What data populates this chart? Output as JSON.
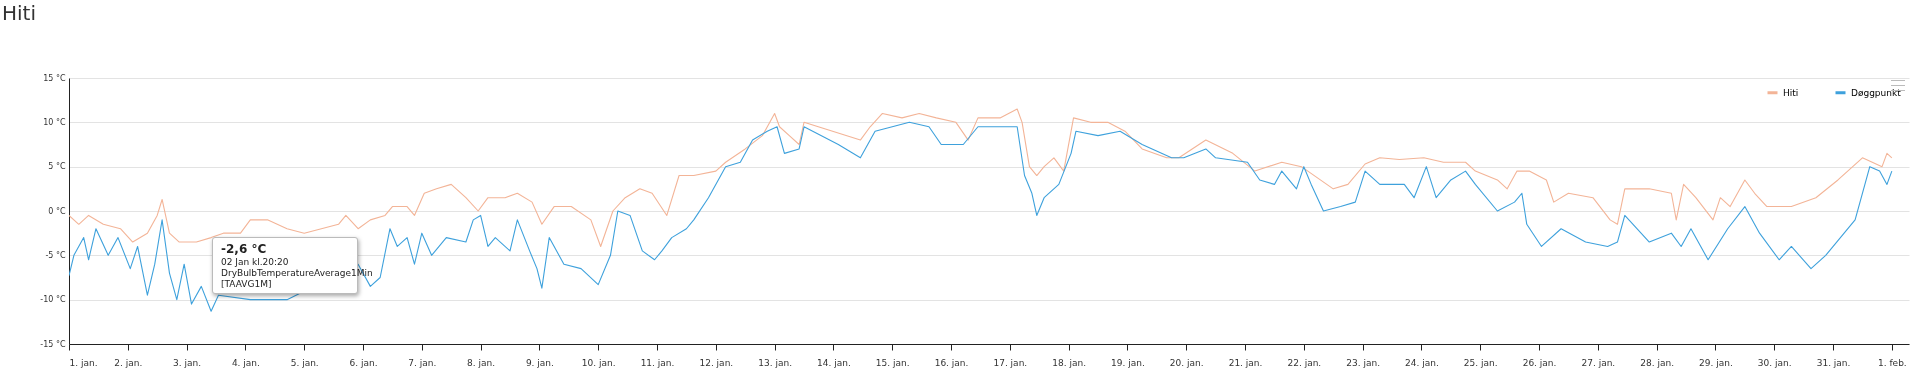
{
  "chart_data": {
    "type": "line",
    "title": "Hiti",
    "xlim": [
      "--01-01T00:00",
      "--02-01T07:00"
    ],
    "xticks": [
      {
        "value": "--01-01",
        "label": "1. jan."
      },
      {
        "value": "--01-02",
        "label": "2. jan."
      },
      {
        "value": "--01-03",
        "label": "3. jan."
      },
      {
        "value": "--01-04",
        "label": "4. jan."
      },
      {
        "value": "--01-05",
        "label": "5. jan."
      },
      {
        "value": "--01-06",
        "label": "6. jan."
      },
      {
        "value": "--01-07",
        "label": "7. jan."
      },
      {
        "value": "--01-08",
        "label": "8. jan."
      },
      {
        "value": "--01-09",
        "label": "9. jan."
      },
      {
        "value": "--01-10",
        "label": "10. jan."
      },
      {
        "value": "--01-11",
        "label": "11. jan."
      },
      {
        "value": "--01-12",
        "label": "12. jan."
      },
      {
        "value": "--01-13",
        "label": "13. jan."
      },
      {
        "value": "--01-14",
        "label": "14. jan."
      },
      {
        "value": "--01-15",
        "label": "15. jan."
      },
      {
        "value": "--01-16",
        "label": "16. jan."
      },
      {
        "value": "--01-17",
        "label": "17. jan."
      },
      {
        "value": "--01-18",
        "label": "18. jan."
      },
      {
        "value": "--01-19",
        "label": "19. jan."
      },
      {
        "value": "--01-20",
        "label": "20. jan."
      },
      {
        "value": "--01-21",
        "label": "21. jan."
      },
      {
        "value": "--01-22",
        "label": "22. jan."
      },
      {
        "value": "--01-23",
        "label": "23. jan."
      },
      {
        "value": "--01-24",
        "label": "24. jan."
      },
      {
        "value": "--01-25",
        "label": "25. jan."
      },
      {
        "value": "--01-26",
        "label": "26. jan."
      },
      {
        "value": "--01-27",
        "label": "27. jan."
      },
      {
        "value": "--01-28",
        "label": "28. jan."
      },
      {
        "value": "--01-29",
        "label": "29. jan."
      },
      {
        "value": "--01-30",
        "label": "30. jan."
      },
      {
        "value": "--01-31",
        "label": "31. jan."
      },
      {
        "value": "--02-01",
        "label": "1. feb."
      }
    ],
    "ylim": [
      -15,
      15
    ],
    "yticks": [
      {
        "value": -15,
        "label": "-15 °C"
      },
      {
        "value": -10,
        "label": "-10 °C"
      },
      {
        "value": -5,
        "label": "-5 °C"
      },
      {
        "value": 0,
        "label": "0 °C"
      },
      {
        "value": 5,
        "label": "5 °C"
      },
      {
        "value": 10,
        "label": "10 °C"
      },
      {
        "value": 15,
        "label": "15 °C"
      }
    ],
    "grid": "y",
    "legend": "top right",
    "annotations": [
      "-2,6 °C",
      "02 Jan kl.20:20",
      "DryBulbTemperatureAverage1Min",
      "[TAAVG1M]"
    ],
    "series": [
      {
        "name": "Hiti",
        "color": "#f3b497",
        "x": [
          "--01-01T00:00",
          "--01-01T04:00",
          "--01-01T08:00",
          "--01-01T14:00",
          "--01-01T21:00",
          "--01-02T02:00",
          "--01-02T08:00",
          "--01-02T12:00",
          "--01-02T14:00",
          "--01-02T17:00",
          "--01-02T21:00",
          "--01-03T04:00",
          "--01-03T10:00",
          "--01-03T15:00",
          "--01-03T22:00",
          "--01-04T02:00",
          "--01-04T09:00",
          "--01-04T17:00",
          "--01-05T00:00",
          "--01-05T07:00",
          "--01-05T14:00",
          "--01-05T17:00",
          "--01-05T22:00",
          "--01-06T03:00",
          "--01-06T09:00",
          "--01-06T12:00",
          "--01-06T18:00",
          "--01-06T21:00",
          "--01-07T01:00",
          "--01-07T06:00",
          "--01-07T12:00",
          "--01-07T18:00",
          "--01-07T23:00",
          "--01-08T03:00",
          "--01-08T10:00",
          "--01-08T15:00",
          "--01-08T21:00",
          "--01-09T01:00",
          "--01-09T06:00",
          "--01-09T13:00",
          "--01-09T21:00",
          "--01-10T01:00",
          "--01-10T06:00",
          "--01-10T11:00",
          "--01-10T17:00",
          "--01-10T22:00",
          "--01-11T04:00",
          "--01-11T09:00",
          "--01-11T15:00",
          "--01-12T00:00",
          "--01-12T04:00",
          "--01-12T12:00",
          "--01-12T19:00",
          "--01-13T00:00",
          "--01-13T02:00",
          "--01-13T06:00",
          "--01-13T10:00",
          "--01-13T12:00",
          "--01-14T11:00",
          "--01-14T15:00",
          "--01-14T20:00",
          "--01-15T04:00",
          "--01-15T11:00",
          "--01-15T18:00",
          "--01-16T02:00",
          "--01-16T07:00",
          "--01-16T11:00",
          "--01-16T20:00",
          "--01-17T03:00",
          "--01-17T05:00",
          "--01-17T08:00",
          "--01-17T11:00",
          "--01-17T14:00",
          "--01-17T18:00",
          "--01-17T22:00",
          "--01-18T02:00",
          "--01-18T09:00",
          "--01-18T16:00",
          "--01-18T23:00",
          "--01-19T06:00",
          "--01-19T16:00",
          "--01-19T21:00",
          "--01-20T08:00",
          "--01-20T19:00",
          "--01-21T04:00",
          "--01-21T15:00",
          "--01-21T23:00",
          "--01-22T12:00",
          "--01-22T18:00",
          "--01-23T01:00",
          "--01-23T07:00",
          "--01-23T15:00",
          "--01-24T01:00",
          "--01-24T09:00",
          "--01-24T18:00",
          "--01-24T22:00",
          "--01-25T07:00",
          "--01-25T11:00",
          "--01-25T15:00",
          "--01-25T20:00",
          "--01-26T03:00",
          "--01-26T06:00",
          "--01-26T12:00",
          "--01-26T22:00",
          "--01-27T05:00",
          "--01-27T08:00",
          "--01-27T11:00",
          "--01-27T21:00",
          "--01-28T06:00",
          "--01-28T08:00",
          "--01-28T11:00",
          "--01-28T16:00",
          "--01-28T23:00",
          "--01-29T02:00",
          "--01-29T06:00",
          "--01-29T12:00",
          "--01-29T16:00",
          "--01-29T21:00",
          "--01-30T07:00",
          "--01-30T17:00",
          "--01-31T02:00",
          "--01-31T12:00",
          "--01-31T20:00",
          "--01-31T22:00",
          "--02-01T00:00"
        ],
        "values": [
          -0.5,
          -1.5,
          -0.5,
          -1.5,
          -2,
          -3.5,
          -2.5,
          -0.5,
          1.3,
          -2.5,
          -3.5,
          -3.5,
          -3,
          -2.5,
          -2.5,
          -1,
          -1,
          -2,
          -2.5,
          -2,
          -1.5,
          -0.5,
          -2,
          -1,
          -0.5,
          0.5,
          0.5,
          -0.5,
          2,
          2.5,
          3,
          1.5,
          0,
          1.5,
          1.5,
          2,
          1,
          -1.5,
          0.5,
          0.5,
          -1,
          -4,
          0,
          1.5,
          2.5,
          2,
          -0.5,
          4,
          4,
          4.5,
          5.5,
          7,
          8.5,
          11,
          9.5,
          8.5,
          7.5,
          10,
          8,
          9.5,
          11,
          10.5,
          11,
          10.5,
          10,
          8,
          10.5,
          10.5,
          11.5,
          10,
          5,
          4,
          5,
          6,
          4.5,
          10.5,
          10,
          10,
          9,
          7,
          6,
          6,
          8,
          6.5,
          4.5,
          5.5,
          5,
          2.5,
          3,
          5.3,
          6,
          5.8,
          6,
          5.5,
          5.5,
          4.5,
          3.5,
          2.5,
          4.5,
          4.5,
          3.5,
          1,
          2,
          1.5,
          -1,
          -1.5,
          2.5,
          2.5,
          2,
          -1,
          3,
          1.5,
          -1,
          1.5,
          0.5,
          3.5,
          2,
          0.5,
          0.5,
          1.5,
          3.5,
          6,
          5,
          6.5,
          6
        ]
      },
      {
        "name": "Døggpunkt",
        "color": "#3ea1dc",
        "x": [
          "--01-01T00:00",
          "--01-01T02:00",
          "--01-01T06:00",
          "--01-01T08:00",
          "--01-01T11:00",
          "--01-01T16:00",
          "--01-01T20:00",
          "--01-02T01:00",
          "--01-02T04:00",
          "--01-02T08:00",
          "--01-02T11:00",
          "--01-02T14:00",
          "--01-02T17:00",
          "--01-02T20:00",
          "--01-02T23:00",
          "--01-03T02:00",
          "--01-03T06:00",
          "--01-03T10:00",
          "--01-03T13:00",
          "--01-04T02:00",
          "--01-04T17:00",
          "--01-05T22:00",
          "--01-06T03:00",
          "--01-06T07:00",
          "--01-06T11:00",
          "--01-06T14:00",
          "--01-06T18:00",
          "--01-06T21:00",
          "--01-07T00:00",
          "--01-07T04:00",
          "--01-07T10:00",
          "--01-07T18:00",
          "--01-07T21:00",
          "--01-08T00:00",
          "--01-08T03:00",
          "--01-08T06:00",
          "--01-08T12:00",
          "--01-08T15:00",
          "--01-08T20:00",
          "--01-08T23:00",
          "--01-09T01:00",
          "--01-09T04:00",
          "--01-09T10:00",
          "--01-09T17:00",
          "--01-10T00:00",
          "--01-10T05:00",
          "--01-10T08:00",
          "--01-10T13:00",
          "--01-10T18:00",
          "--01-10T23:00",
          "--01-11T02:00",
          "--01-11T06:00",
          "--01-11T12:00",
          "--01-11T15:00",
          "--01-11T21:00",
          "--01-12T04:00",
          "--01-12T10:00",
          "--01-12T15:00",
          "--01-12T21:00",
          "--01-13T01:00",
          "--01-13T04:00",
          "--01-13T10:00",
          "--01-13T12:00",
          "--01-14T02:00",
          "--01-14T11:00",
          "--01-14T17:00",
          "--01-15T00:00",
          "--01-15T07:00",
          "--01-15T15:00",
          "--01-15T20:00",
          "--01-16T05:00",
          "--01-16T11:00",
          "--01-17T03:00",
          "--01-17T06:00",
          "--01-17T09:00",
          "--01-17T11:00",
          "--01-17T14:00",
          "--01-17T20:00",
          "--01-18T01:00",
          "--01-18T03:00",
          "--01-18T12:00",
          "--01-18T21:00",
          "--01-19T06:00",
          "--01-19T18:00",
          "--01-19T23:00",
          "--01-20T08:00",
          "--01-20T12:00",
          "--01-21T01:00",
          "--01-21T06:00",
          "--01-21T12:00",
          "--01-21T15:00",
          "--01-21T21:00",
          "--01-22T00:00",
          "--01-22T03:00",
          "--01-22T08:00",
          "--01-22T15:00",
          "--01-22T21:00",
          "--01-23T01:00",
          "--01-23T07:00",
          "--01-23T17:00",
          "--01-23T21:00",
          "--01-24T02:00",
          "--01-24T06:00",
          "--01-24T12:00",
          "--01-24T18:00",
          "--01-24T22:00",
          "--01-25T07:00",
          "--01-25T14:00",
          "--01-25T17:00",
          "--01-25T19:00",
          "--01-26T01:00",
          "--01-26T09:00",
          "--01-26T19:00",
          "--01-27T04:00",
          "--01-27T08:00",
          "--01-27T11:00",
          "--01-27T21:00",
          "--01-28T06:00",
          "--01-28T10:00",
          "--01-28T14:00",
          "--01-28T21:00",
          "--01-29T05:00",
          "--01-29T12:00",
          "--01-29T18:00",
          "--01-30T02:00",
          "--01-30T07:00",
          "--01-30T15:00",
          "--01-30T21:00",
          "--01-31T09:00",
          "--01-31T15:00",
          "--01-31T19:00",
          "--01-31T22:00",
          "--02-01T00:00"
        ],
        "values": [
          -7.3,
          -5,
          -3,
          -5.5,
          -2,
          -5,
          -3,
          -6.5,
          -4,
          -9.5,
          -6,
          -1,
          -7,
          -10,
          -6,
          -10.5,
          -8.5,
          -11.3,
          -9.5,
          -10,
          -10,
          -6,
          -8.5,
          -7.5,
          -2,
          -4,
          -3,
          -6,
          -2.5,
          -5,
          -3,
          -3.5,
          -1,
          -0.5,
          -4,
          -3,
          -4.5,
          -1,
          -4.5,
          -6.5,
          -8.7,
          -3,
          -6,
          -6.5,
          -8.3,
          -5,
          0,
          -0.5,
          -4.5,
          -5.5,
          -4.5,
          -3,
          -2,
          -1,
          1.5,
          5,
          5.5,
          8,
          9,
          9.5,
          6.5,
          7,
          9.5,
          7.5,
          6,
          9,
          9.5,
          10,
          9.5,
          7.5,
          7.5,
          9.5,
          9.5,
          4,
          2,
          -0.5,
          1.5,
          3,
          6.5,
          9,
          8.5,
          9,
          7.5,
          6,
          6,
          7,
          6,
          5.5,
          3.5,
          3,
          4.5,
          2.5,
          5,
          3,
          0,
          0.5,
          1,
          4.5,
          3,
          3,
          1.5,
          5,
          1.5,
          3.5,
          4.5,
          3,
          0,
          1,
          2,
          -1.5,
          -4,
          -2,
          -3.5,
          -4,
          -3.5,
          -0.5,
          -3.5,
          -2.5,
          -4,
          -2,
          -5.5,
          -2,
          0.5,
          -2.5,
          -5.5,
          -4,
          -6.5,
          -5,
          -1,
          5,
          4.5,
          3,
          4.5
        ]
      }
    ]
  }
}
